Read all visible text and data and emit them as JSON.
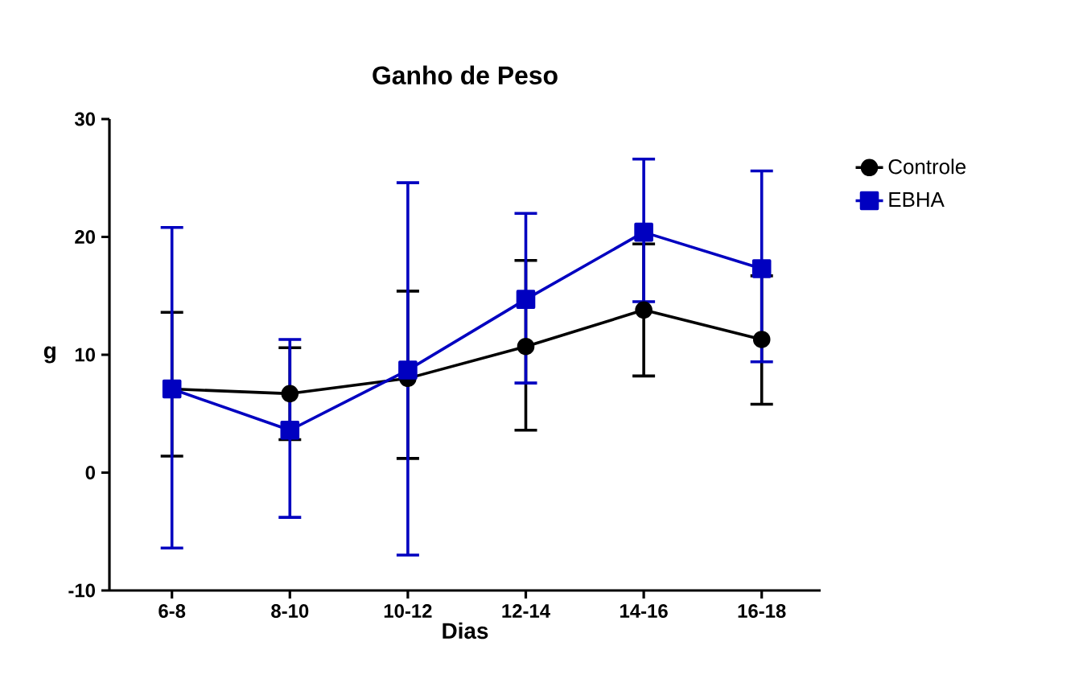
{
  "chart_data": {
    "type": "line",
    "title": "Ganho de Peso",
    "xlabel": "Dias",
    "ylabel": "g",
    "categories": [
      "6-8",
      "8-10",
      "10-12",
      "12-14",
      "14-16",
      "16-18"
    ],
    "series": [
      {
        "name": "Controle",
        "color": "#000000",
        "marker": "circle",
        "values": [
          7.1,
          6.7,
          8.0,
          10.7,
          13.8,
          11.3
        ],
        "errors": [
          [
            1.4,
            13.6
          ],
          [
            2.8,
            10.6
          ],
          [
            1.2,
            15.4
          ],
          [
            3.6,
            18.0
          ],
          [
            8.2,
            19.4
          ],
          [
            5.8,
            16.7
          ]
        ]
      },
      {
        "name": "EBHA",
        "color": "#0000c0",
        "marker": "square",
        "values": [
          7.1,
          3.6,
          8.7,
          14.7,
          20.4,
          17.3
        ],
        "errors": [
          [
            -6.4,
            20.8
          ],
          [
            -3.8,
            11.3
          ],
          [
            -7.0,
            24.6
          ],
          [
            7.6,
            22.0
          ],
          [
            14.5,
            26.6
          ],
          [
            9.4,
            25.6
          ]
        ]
      }
    ],
    "ylim": [
      -10,
      30
    ],
    "yticks": [
      -10,
      0,
      10,
      20,
      30
    ],
    "grid": false,
    "legend": "top right",
    "line_style": "solid"
  }
}
